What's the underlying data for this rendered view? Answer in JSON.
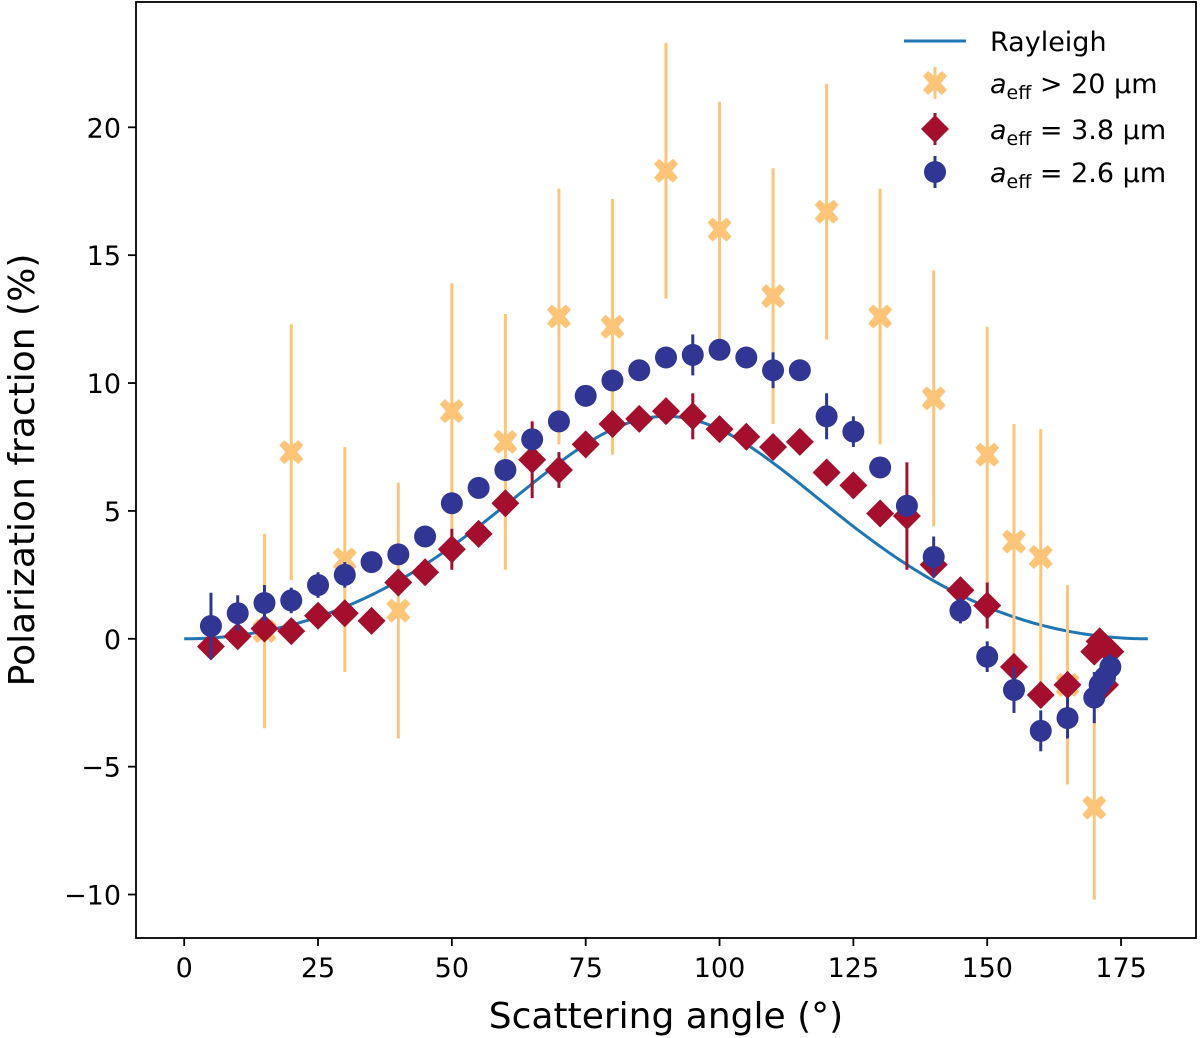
{
  "chart_data": {
    "type": "scatter",
    "title": "",
    "xlabel": "Scattering angle (°)",
    "ylabel": "Polarization fraction (%)",
    "xlim": [
      -9,
      189
    ],
    "ylim": [
      -11.7,
      24.9
    ],
    "grid": false,
    "legend_position": "top-right",
    "x_ticks": [
      0,
      25,
      50,
      75,
      100,
      125,
      150,
      175
    ],
    "y_ticks": [
      -10,
      -5,
      0,
      5,
      10,
      15,
      20
    ],
    "x_tick_labels": [
      "0",
      "25",
      "50",
      "75",
      "100",
      "125",
      "150",
      "175"
    ],
    "y_tick_labels": [
      "−10",
      "−5",
      "0",
      "5",
      "10",
      "15",
      "20"
    ],
    "curve": {
      "name": "Rayleigh",
      "color": "#1f77b4",
      "formula": "8.7 * sin^2(theta) / (1 + cos^2(theta))",
      "x_range": [
        0,
        180
      ]
    },
    "series": [
      {
        "name": "a_eff > 20 μm",
        "legend": {
          "main": "a",
          "sub": "eff",
          "rest": " > 20 μm"
        },
        "marker": "x-filled",
        "color": "#fec579",
        "points": [
          {
            "x": 15,
            "y": 0.3,
            "err": 3.8
          },
          {
            "x": 20,
            "y": 7.3,
            "err": 5.0
          },
          {
            "x": 30,
            "y": 3.1,
            "err": 4.4
          },
          {
            "x": 40,
            "y": 1.1,
            "err": 5.0
          },
          {
            "x": 50,
            "y": 8.9,
            "err": 5.0
          },
          {
            "x": 60,
            "y": 7.7,
            "err": 5.0
          },
          {
            "x": 70,
            "y": 12.6,
            "err": 5.0
          },
          {
            "x": 80,
            "y": 12.2,
            "err": 5.0
          },
          {
            "x": 90,
            "y": 18.3,
            "err": 5.0
          },
          {
            "x": 100,
            "y": 16.0,
            "err": 5.0
          },
          {
            "x": 110,
            "y": 13.4,
            "err": 5.0
          },
          {
            "x": 120,
            "y": 16.7,
            "err": 5.0
          },
          {
            "x": 130,
            "y": 12.6,
            "err": 5.0
          },
          {
            "x": 140,
            "y": 9.4,
            "err": 5.0
          },
          {
            "x": 150,
            "y": 7.2,
            "err": 5.0
          },
          {
            "x": 155,
            "y": 3.8,
            "err": 4.6
          },
          {
            "x": 160,
            "y": 3.2,
            "err": 5.0
          },
          {
            "x": 165,
            "y": -1.8,
            "err": 3.9
          },
          {
            "x": 170,
            "y": -6.6,
            "err": 3.6
          }
        ]
      },
      {
        "name": "a_eff = 3.8 μm",
        "legend": {
          "main": "a",
          "sub": "eff",
          "rest": " = 3.8 μm"
        },
        "marker": "diamond",
        "color": "#a50f2d",
        "points": [
          {
            "x": 5,
            "y": -0.3,
            "err": 0.4
          },
          {
            "x": 10,
            "y": 0.1,
            "err": 0.4
          },
          {
            "x": 15,
            "y": 0.4,
            "err": 0.4
          },
          {
            "x": 20,
            "y": 0.3,
            "err": 0.4
          },
          {
            "x": 25,
            "y": 0.9,
            "err": 0.4
          },
          {
            "x": 30,
            "y": 1.0,
            "err": 0.4
          },
          {
            "x": 35,
            "y": 0.7,
            "err": 0.4
          },
          {
            "x": 40,
            "y": 2.2,
            "err": 0.5
          },
          {
            "x": 45,
            "y": 2.6,
            "err": 0.5
          },
          {
            "x": 50,
            "y": 3.5,
            "err": 0.8
          },
          {
            "x": 55,
            "y": 4.1,
            "err": 0.5
          },
          {
            "x": 60,
            "y": 5.3,
            "err": 0.5
          },
          {
            "x": 65,
            "y": 7.0,
            "err": 1.5
          },
          {
            "x": 70,
            "y": 6.6,
            "err": 0.7
          },
          {
            "x": 75,
            "y": 7.6,
            "err": 0.5
          },
          {
            "x": 80,
            "y": 8.4,
            "err": 0.5
          },
          {
            "x": 85,
            "y": 8.6,
            "err": 0.5
          },
          {
            "x": 90,
            "y": 8.9,
            "err": 0.5
          },
          {
            "x": 95,
            "y": 8.7,
            "err": 0.9
          },
          {
            "x": 100,
            "y": 8.2,
            "err": 0.5
          },
          {
            "x": 105,
            "y": 7.9,
            "err": 0.5
          },
          {
            "x": 110,
            "y": 7.5,
            "err": 0.5
          },
          {
            "x": 115,
            "y": 7.7,
            "err": 0.5
          },
          {
            "x": 120,
            "y": 6.5,
            "err": 0.5
          },
          {
            "x": 125,
            "y": 6.0,
            "err": 0.5
          },
          {
            "x": 130,
            "y": 4.9,
            "err": 0.5
          },
          {
            "x": 135,
            "y": 4.8,
            "err": 2.1
          },
          {
            "x": 140,
            "y": 2.9,
            "err": 0.5
          },
          {
            "x": 145,
            "y": 1.9,
            "err": 0.5
          },
          {
            "x": 150,
            "y": 1.3,
            "err": 0.9
          },
          {
            "x": 155,
            "y": -1.1,
            "err": 0.5
          },
          {
            "x": 160,
            "y": -2.2,
            "err": 0.5
          },
          {
            "x": 165,
            "y": -1.8,
            "err": 0.5
          },
          {
            "x": 170,
            "y": -0.5,
            "err": 0.4
          },
          {
            "x": 171,
            "y": -0.1,
            "err": 0.4
          },
          {
            "x": 172,
            "y": -1.8,
            "err": 0.4
          },
          {
            "x": 173,
            "y": -0.5,
            "err": 0.4
          }
        ]
      },
      {
        "name": "a_eff = 2.6 μm",
        "legend": {
          "main": "a",
          "sub": "eff",
          "rest": " = 2.6 μm"
        },
        "marker": "circle",
        "color": "#313695",
        "points": [
          {
            "x": 5,
            "y": 0.5,
            "err": 1.3
          },
          {
            "x": 10,
            "y": 1.0,
            "err": 0.7
          },
          {
            "x": 15,
            "y": 1.4,
            "err": 0.7
          },
          {
            "x": 20,
            "y": 1.5,
            "err": 0.5
          },
          {
            "x": 25,
            "y": 2.1,
            "err": 0.5
          },
          {
            "x": 30,
            "y": 2.5,
            "err": 0.5
          },
          {
            "x": 35,
            "y": 3.0,
            "err": 0.4
          },
          {
            "x": 40,
            "y": 3.3,
            "err": 0.4
          },
          {
            "x": 45,
            "y": 4.0,
            "err": 0.4
          },
          {
            "x": 50,
            "y": 5.3,
            "err": 0.4
          },
          {
            "x": 55,
            "y": 5.9,
            "err": 0.4
          },
          {
            "x": 60,
            "y": 6.6,
            "err": 0.4
          },
          {
            "x": 65,
            "y": 7.8,
            "err": 0.4
          },
          {
            "x": 70,
            "y": 8.5,
            "err": 0.4
          },
          {
            "x": 75,
            "y": 9.5,
            "err": 0.4
          },
          {
            "x": 80,
            "y": 10.1,
            "err": 0.4
          },
          {
            "x": 85,
            "y": 10.5,
            "err": 0.4
          },
          {
            "x": 90,
            "y": 11.0,
            "err": 0.4
          },
          {
            "x": 95,
            "y": 11.1,
            "err": 0.8
          },
          {
            "x": 100,
            "y": 11.3,
            "err": 0.4
          },
          {
            "x": 105,
            "y": 11.0,
            "err": 0.4
          },
          {
            "x": 110,
            "y": 10.5,
            "err": 0.7
          },
          {
            "x": 115,
            "y": 10.5,
            "err": 0.4
          },
          {
            "x": 120,
            "y": 8.7,
            "err": 0.9
          },
          {
            "x": 125,
            "y": 8.1,
            "err": 0.6
          },
          {
            "x": 130,
            "y": 6.7,
            "err": 0.4
          },
          {
            "x": 135,
            "y": 5.2,
            "err": 0.4
          },
          {
            "x": 140,
            "y": 3.2,
            "err": 0.8
          },
          {
            "x": 145,
            "y": 1.1,
            "err": 0.5
          },
          {
            "x": 150,
            "y": -0.7,
            "err": 0.6
          },
          {
            "x": 155,
            "y": -2.0,
            "err": 0.9
          },
          {
            "x": 160,
            "y": -3.6,
            "err": 0.8
          },
          {
            "x": 165,
            "y": -3.1,
            "err": 0.8
          },
          {
            "x": 170,
            "y": -2.3,
            "err": 1.0
          },
          {
            "x": 171,
            "y": -1.8,
            "err": 0.5
          },
          {
            "x": 172,
            "y": -1.5,
            "err": 0.5
          },
          {
            "x": 173,
            "y": -1.1,
            "err": 0.5
          }
        ]
      }
    ]
  }
}
